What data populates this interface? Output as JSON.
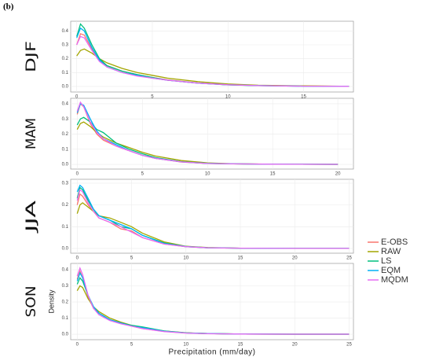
{
  "figure_label": "(b)",
  "chart_data": [
    {
      "type": "line",
      "panel_label": "DJF",
      "x": [
        0,
        0.25,
        0.5,
        1,
        1.5,
        2,
        3,
        4,
        5,
        6,
        8,
        10,
        12,
        15,
        18
      ],
      "series": [
        {
          "name": "E-OBS",
          "color": "#F8766D",
          "values": [
            0.3,
            0.38,
            0.37,
            0.27,
            0.19,
            0.15,
            0.11,
            0.085,
            0.065,
            0.048,
            0.025,
            0.012,
            0.007,
            0.003,
            0.001
          ]
        },
        {
          "name": "RAW",
          "color": "#A3A500",
          "values": [
            0.22,
            0.26,
            0.27,
            0.24,
            0.2,
            0.17,
            0.13,
            0.1,
            0.08,
            0.06,
            0.035,
            0.018,
            0.009,
            0.004,
            0.001
          ]
        },
        {
          "name": "LS",
          "color": "#00BF7D",
          "values": [
            0.36,
            0.45,
            0.42,
            0.3,
            0.2,
            0.15,
            0.11,
            0.085,
            0.065,
            0.045,
            0.024,
            0.011,
            0.006,
            0.002,
            0.001
          ]
        },
        {
          "name": "EQM",
          "color": "#00B0F6",
          "values": [
            0.35,
            0.42,
            0.4,
            0.28,
            0.19,
            0.14,
            0.1,
            0.08,
            0.06,
            0.045,
            0.024,
            0.012,
            0.006,
            0.002,
            0.001
          ]
        },
        {
          "name": "MQDM",
          "color": "#E76BF3",
          "values": [
            0.3,
            0.36,
            0.35,
            0.26,
            0.18,
            0.14,
            0.1,
            0.075,
            0.06,
            0.045,
            0.024,
            0.012,
            0.006,
            0.002,
            0.001
          ]
        }
      ],
      "xlim": [
        -0.4,
        18.3
      ],
      "ylim": [
        -0.04,
        0.47
      ],
      "xticks": [
        0,
        5,
        10,
        15
      ],
      "yticks": [
        {
          "value": 0,
          "label": "0.0"
        },
        0.1,
        0.2,
        0.3,
        0.4
      ],
      "grid": true
    },
    {
      "type": "line",
      "panel_label": "MAM",
      "x": [
        0,
        0.25,
        0.5,
        1,
        1.5,
        2,
        3,
        4,
        5,
        6,
        8,
        10,
        12,
        15,
        20
      ],
      "series": [
        {
          "values": [
            0.33,
            0.4,
            0.38,
            0.27,
            0.2,
            0.16,
            0.12,
            0.09,
            0.06,
            0.04,
            0.015,
            0.006,
            0.003,
            0.001,
            0
          ]
        },
        {
          "values": [
            0.23,
            0.27,
            0.28,
            0.25,
            0.21,
            0.18,
            0.14,
            0.11,
            0.08,
            0.055,
            0.025,
            0.01,
            0.004,
            0.001,
            0
          ]
        },
        {
          "values": [
            0.26,
            0.3,
            0.31,
            0.28,
            0.23,
            0.21,
            0.14,
            0.1,
            0.07,
            0.045,
            0.018,
            0.007,
            0.003,
            0.001,
            0
          ]
        },
        {
          "values": [
            0.34,
            0.4,
            0.39,
            0.3,
            0.22,
            0.17,
            0.13,
            0.09,
            0.06,
            0.04,
            0.016,
            0.006,
            0.003,
            0.001,
            0
          ]
        },
        {
          "values": [
            0.35,
            0.41,
            0.38,
            0.28,
            0.21,
            0.17,
            0.12,
            0.09,
            0.06,
            0.04,
            0.016,
            0.006,
            0.003,
            0.001,
            0
          ]
        }
      ],
      "xlim": [
        -0.5,
        21.2
      ],
      "ylim": [
        -0.031,
        0.436
      ],
      "xticks": [
        0,
        5,
        10,
        15,
        20
      ],
      "yticks": [
        {
          "value": 0,
          "label": "0.0"
        },
        0.1,
        0.2,
        0.3,
        0.4
      ],
      "grid": true
    },
    {
      "type": "line",
      "panel_label": "JJA",
      "x": [
        0,
        0.25,
        0.5,
        1,
        1.5,
        2,
        3,
        4,
        5,
        6,
        8,
        10,
        12,
        15,
        20,
        25
      ],
      "series": [
        {
          "values": [
            0.2,
            0.25,
            0.24,
            0.2,
            0.17,
            0.14,
            0.12,
            0.09,
            0.08,
            0.05,
            0.02,
            0.008,
            0.003,
            0.001,
            0,
            0
          ]
        },
        {
          "values": [
            0.16,
            0.2,
            0.21,
            0.19,
            0.17,
            0.15,
            0.14,
            0.12,
            0.1,
            0.07,
            0.03,
            0.01,
            0.004,
            0.001,
            0,
            0
          ]
        },
        {
          "values": [
            0.23,
            0.28,
            0.27,
            0.22,
            0.18,
            0.15,
            0.13,
            0.1,
            0.09,
            0.06,
            0.025,
            0.009,
            0.003,
            0.001,
            0,
            0
          ]
        },
        {
          "values": [
            0.26,
            0.29,
            0.28,
            0.23,
            0.18,
            0.15,
            0.13,
            0.11,
            0.09,
            0.06,
            0.022,
            0.008,
            0.003,
            0.001,
            0,
            0
          ]
        },
        {
          "values": [
            0.22,
            0.27,
            0.26,
            0.21,
            0.17,
            0.14,
            0.12,
            0.1,
            0.075,
            0.05,
            0.02,
            0.008,
            0.003,
            0.001,
            0,
            0
          ]
        }
      ],
      "xlim": [
        -0.6,
        25.4
      ],
      "ylim": [
        -0.022,
        0.318
      ],
      "xticks": [
        0,
        5,
        10,
        15,
        20,
        25
      ],
      "yticks": [
        {
          "value": 0,
          "label": "0.0"
        },
        0.1,
        0.2,
        0.3
      ],
      "grid": true
    },
    {
      "type": "line",
      "panel_label": "SON",
      "ylabel": "Density",
      "xlabel": "Precipitation (mm/day)",
      "x": [
        0,
        0.25,
        0.5,
        1,
        1.5,
        2,
        3,
        4,
        5,
        6,
        8,
        10,
        12,
        15,
        20,
        25
      ],
      "series": [
        {
          "values": [
            0.34,
            0.39,
            0.35,
            0.23,
            0.16,
            0.13,
            0.09,
            0.07,
            0.05,
            0.035,
            0.017,
            0.008,
            0.004,
            0.001,
            0,
            0
          ]
        },
        {
          "values": [
            0.27,
            0.3,
            0.29,
            0.22,
            0.17,
            0.14,
            0.1,
            0.075,
            0.055,
            0.04,
            0.02,
            0.009,
            0.004,
            0.001,
            0,
            0
          ]
        },
        {
          "values": [
            0.31,
            0.35,
            0.33,
            0.24,
            0.17,
            0.13,
            0.09,
            0.07,
            0.055,
            0.045,
            0.02,
            0.008,
            0.004,
            0.001,
            0,
            0
          ]
        },
        {
          "values": [
            0.33,
            0.38,
            0.35,
            0.24,
            0.17,
            0.13,
            0.09,
            0.07,
            0.05,
            0.04,
            0.018,
            0.008,
            0.004,
            0.001,
            0,
            0
          ]
        },
        {
          "values": [
            0.36,
            0.41,
            0.37,
            0.24,
            0.16,
            0.12,
            0.085,
            0.065,
            0.05,
            0.035,
            0.016,
            0.007,
            0.003,
            0.001,
            0,
            0
          ]
        }
      ],
      "xlim": [
        -0.6,
        25.4
      ],
      "ylim": [
        -0.034,
        0.439
      ],
      "xticks": [
        0,
        5,
        10,
        15,
        20,
        25
      ],
      "yticks": [
        {
          "value": 0,
          "label": "0.0"
        },
        0.1,
        0.2,
        0.3,
        0.4
      ],
      "grid": true
    }
  ]
}
